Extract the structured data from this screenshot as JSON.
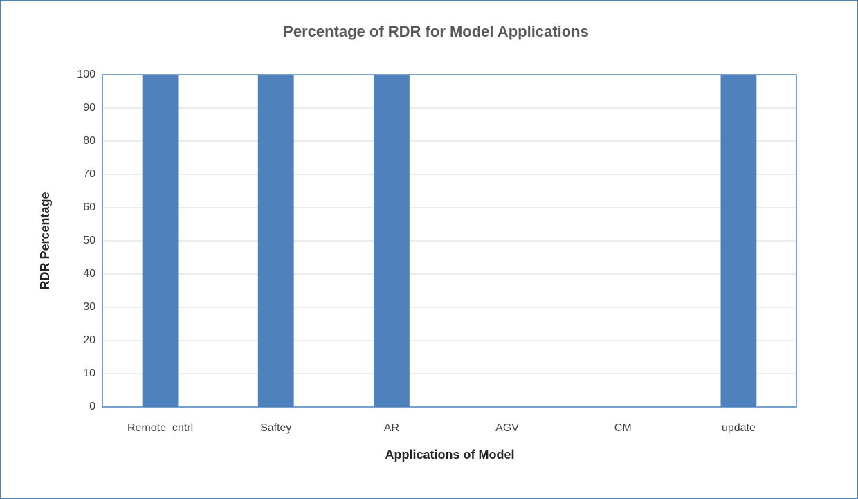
{
  "chart_data": {
    "type": "bar",
    "title": "Percentage of RDR for Model Applications",
    "x_label": "Applications of Model",
    "y_label": "RDR Percentage",
    "categories": [
      "Remote_cntrl",
      "Saftey",
      "AR",
      "AGV",
      "CM",
      "update"
    ],
    "values": [
      100,
      100,
      100,
      0,
      0,
      100
    ],
    "color": "#4f81bd",
    "ylim": [
      0,
      100
    ],
    "yticks": [
      0,
      10,
      20,
      30,
      40,
      50,
      60,
      70,
      80,
      90,
      100
    ],
    "grid": true
  }
}
